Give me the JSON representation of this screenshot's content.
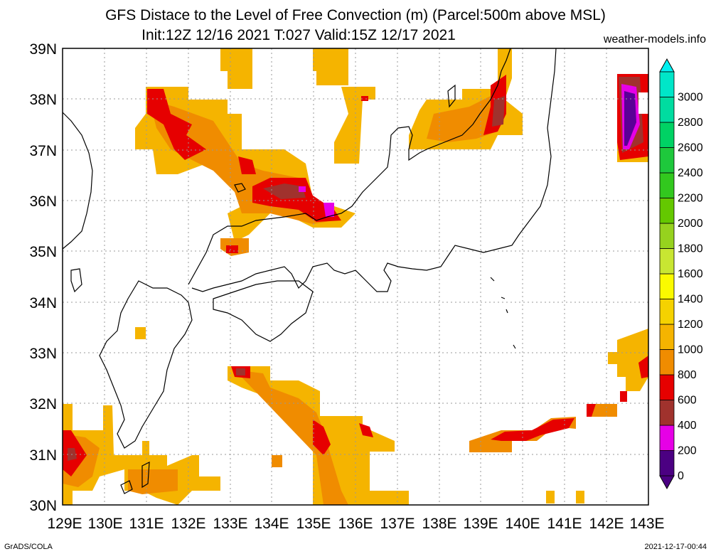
{
  "title": {
    "line1": "GFS Distace to the Level of Free Convection (m) (Parcel:500m above MSL)",
    "line2": "Init:12Z 12/16 2021 T:027 Valid:15Z 12/17 2021",
    "site": "weather-models.info"
  },
  "footer": {
    "left": "GrADS/COLA",
    "right": "2021-12-17-00:44"
  },
  "map": {
    "lon_labels": [
      "129E",
      "130E",
      "131E",
      "132E",
      "133E",
      "134E",
      "135E",
      "136E",
      "137E",
      "138E",
      "139E",
      "140E",
      "141E",
      "142E",
      "143E"
    ],
    "lat_labels": [
      "30N",
      "31N",
      "32N",
      "33N",
      "34N",
      "35N",
      "36N",
      "37N",
      "38N",
      "39N"
    ],
    "lon_range": [
      129,
      143
    ],
    "lat_range": [
      30,
      39
    ],
    "grid": true
  },
  "colorbar": {
    "levels": [
      "0",
      "200",
      "400",
      "600",
      "800",
      "1000",
      "1200",
      "1400",
      "1600",
      "1800",
      "2000",
      "2200",
      "2400",
      "2600",
      "2800",
      "3000"
    ],
    "colors": [
      "#a000c8",
      "#e600e6",
      "#a0322d",
      "#e60000",
      "#f08c00",
      "#f5b400",
      "#f5d200",
      "#fafa00",
      "#c8e632",
      "#96d21e",
      "#64c800",
      "#32c81e",
      "#1ec83c",
      "#00d264",
      "#00dca0",
      "#00e6c8",
      "#00f0f0"
    ],
    "lower_color": "#4b0082",
    "upper_color": "#00f0f0"
  },
  "field": {
    "colors": {
      "c0": "#5a0096",
      "c200": "#e600e6",
      "c400": "#a0322d",
      "c600": "#e60000",
      "c800": "#f08c00",
      "c1000": "#f5b400",
      "c1200": "#f5c800"
    }
  }
}
